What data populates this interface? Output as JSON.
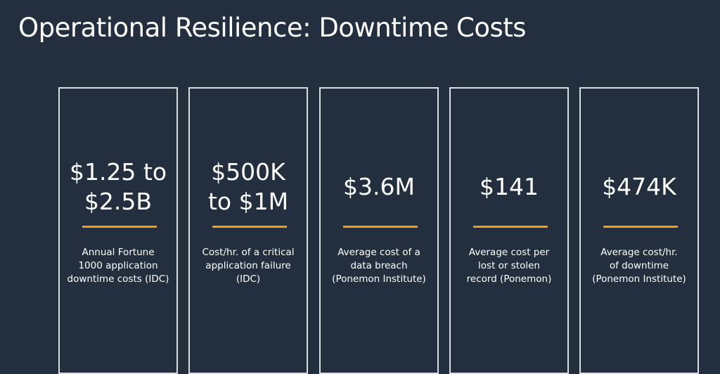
{
  "slide": {
    "title": "Operational Resilience: Downtime Costs",
    "accent_color": "#f19e18",
    "background_color": "#232f3e",
    "border_color": "#d8dde3"
  },
  "cards": [
    {
      "value_lines": [
        "$1.25 to",
        "$2.5B"
      ],
      "caption": "Annual Fortune\n1000 application\ndowntime costs (IDC)"
    },
    {
      "value_lines": [
        "$500K",
        "to $1M"
      ],
      "caption": "Cost/hr. of a critical\napplication failure\n(IDC)"
    },
    {
      "value_lines": [
        "$3.6M"
      ],
      "caption": "Average cost of a\ndata breach\n(Ponemon Institute)"
    },
    {
      "value_lines": [
        "$141"
      ],
      "caption": "Average cost per\nlost or stolen\nrecord (Ponemon)"
    },
    {
      "value_lines": [
        "$474K"
      ],
      "caption": "Average cost/hr.\nof downtime\n(Ponemon Institute)"
    }
  ]
}
